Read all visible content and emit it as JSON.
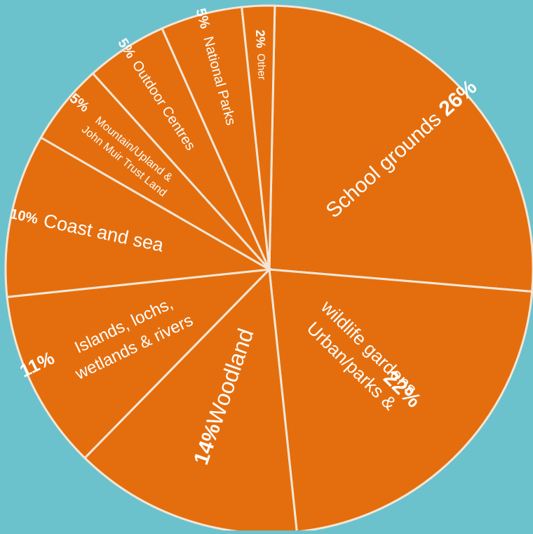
{
  "chart_data": {
    "type": "pie",
    "title": "",
    "slices": [
      {
        "label_lines": [
          "School grounds"
        ],
        "pct_text": "26%",
        "value": 26
      },
      {
        "label_lines": [
          "Urban/parks &",
          "wildlife gardens"
        ],
        "pct_text": "22%",
        "value": 22
      },
      {
        "label_lines": [
          "Woodland"
        ],
        "pct_text": "14%",
        "value": 14
      },
      {
        "label_lines": [
          "Islands, lochs,",
          "wetlands & rivers"
        ],
        "pct_text": "11%",
        "value": 11
      },
      {
        "label_lines": [
          "Coast and sea"
        ],
        "pct_text": "10%",
        "value": 10
      },
      {
        "label_lines": [
          "Mountain/Upland &",
          "John Muir Trust Land"
        ],
        "pct_text": "5%",
        "value": 5
      },
      {
        "label_lines": [
          "Outdoor Centres"
        ],
        "pct_text": "5%",
        "value": 5
      },
      {
        "label_lines": [
          "National Parks"
        ],
        "pct_text": "5%",
        "value": 5
      },
      {
        "label_lines": [
          "Other"
        ],
        "pct_text": "2%",
        "value": 2
      }
    ],
    "colors": {
      "background": "#6bc2cc",
      "slice": "#e46e0e",
      "border": "#f4e6d6",
      "text": "#ffffff"
    },
    "legend": "none"
  }
}
